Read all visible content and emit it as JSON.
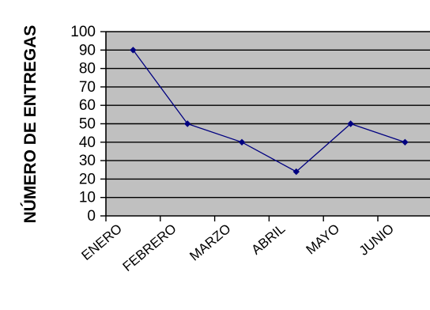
{
  "chart_data": {
    "type": "line",
    "title": "",
    "xlabel": "",
    "ylabel": "NÚMERO DE ENTREGAS",
    "categories": [
      "ENERO",
      "FEBRERO",
      "MARZO",
      "ABRIL",
      "MAYO",
      "JUNIO"
    ],
    "series": [
      {
        "values": [
          90,
          50,
          40,
          24,
          50,
          40
        ]
      }
    ],
    "ylim": [
      0,
      100
    ],
    "yticks": [
      0,
      10,
      20,
      30,
      40,
      50,
      60,
      70,
      80,
      90,
      100
    ],
    "grid": true,
    "legend": "none",
    "colors": {
      "plot_background": "#c0c0c0",
      "gridline": "#000000",
      "line": "#000080",
      "marker": "#000080"
    }
  }
}
